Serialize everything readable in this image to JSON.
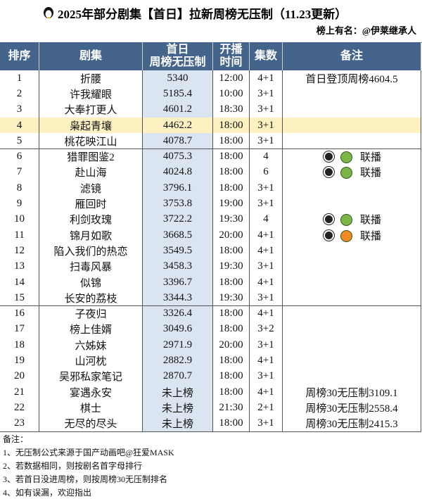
{
  "header": {
    "title": "2025年部分剧集【首日】拉新周榜无压制（11.23更新）",
    "subtitle": "榜上有名：@伊莱继承人"
  },
  "table": {
    "columns": [
      [
        "排序"
      ],
      [
        "剧集"
      ],
      [
        "首日",
        "周榜无压制"
      ],
      [
        "开播",
        "时间"
      ],
      [
        "集数"
      ],
      [
        "备注"
      ]
    ],
    "rows": [
      [
        "1",
        "折腰",
        "5340",
        "12:00",
        "4+1",
        "首日登顶周榜4604.5"
      ],
      [
        "2",
        "许我耀眼",
        "5185.4",
        "10:00",
        "3+1",
        null
      ],
      [
        "3",
        "大奉打更人",
        "4601.2",
        "18:30",
        "3+1",
        null
      ],
      [
        "4",
        "枭起青壤",
        "4462.2",
        "18:00",
        "3+1",
        null
      ],
      [
        "5",
        "桃花映江山",
        "4078.7",
        "18:00",
        "3+1",
        null
      ],
      [
        "6",
        "猎罪图鉴2",
        "4075.3",
        "18:00",
        "4",
        "联播"
      ],
      [
        "7",
        "赴山海",
        "4024.8",
        "18:00",
        "6",
        "联播"
      ],
      [
        "8",
        "滤镜",
        "3796.1",
        "18:00",
        "3+1",
        null
      ],
      [
        "9",
        "雁回时",
        "3753.8",
        "19:00",
        "3+1",
        null
      ],
      [
        "10",
        "利剑玫瑰",
        "3722.2",
        "19:30",
        "4",
        "联播"
      ],
      [
        "11",
        "锦月如歌",
        "3668.5",
        "20:00",
        "4+1",
        "联播"
      ],
      [
        "12",
        "陷入我们的热恋",
        "3549.5",
        "18:00",
        "4+1",
        null
      ],
      [
        "13",
        "扫毒风暴",
        "3458.3",
        "19:30",
        "3+1",
        null
      ],
      [
        "14",
        "似锦",
        "3396.7",
        "18:00",
        "4+1",
        null
      ],
      [
        "15",
        "长安的荔枝",
        "3344.3",
        "19:30",
        "3+1",
        null
      ],
      [
        "16",
        "子夜归",
        "3326.4",
        "18:00",
        "4+1",
        null
      ],
      [
        "17",
        "榜上佳婿",
        "3049.6",
        "18:00",
        "3+2",
        null
      ],
      [
        "18",
        "六姊妹",
        "2971.9",
        "20:00",
        "3+1",
        null
      ],
      [
        "19",
        "山河枕",
        "2882.9",
        "18:00",
        "4+1",
        null
      ],
      [
        "20",
        "吴邪私家笔记",
        "2870.7",
        "18:00",
        "3+1",
        null
      ],
      [
        "21",
        "宴遇永安",
        "未上榜",
        "18:00",
        "4+1",
        "周榜30无压制3109.1"
      ],
      [
        "22",
        "棋士",
        "未上榜",
        "21:30",
        "2+1",
        "周榜30无压制2558.4"
      ],
      [
        "23",
        "无尽的尽头",
        "未上榜",
        "18:00",
        "3+1",
        "周榜30无压制2415.3"
      ]
    ]
  },
  "notes": {
    "heading": "备注：",
    "lines": [
      "1、无压制公式来源于国产动画吧@狂爱MASK",
      "2、若数据相同，则按剧名首字母排行",
      "3、若首日没进周榜，则按周榜30无压制排名",
      "4、如有误漏，欢迎指出"
    ]
  }
}
